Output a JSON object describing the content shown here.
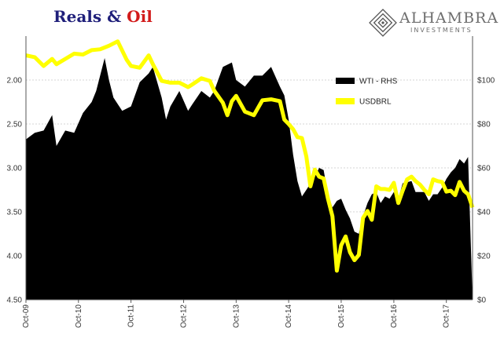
{
  "title": {
    "part1": "Reals",
    "part2": "&",
    "part3": "Oil"
  },
  "logo": {
    "name": "ALHAMBRA",
    "sub": "INVESTMENTS"
  },
  "colors": {
    "wti": "#000000",
    "usdbrl": "#ffff00",
    "title_blue": "#1f1f7a",
    "title_red": "#d21b1b"
  },
  "chart_data": {
    "type": "area",
    "x_ticks": [
      "Oct-09",
      "Oct-10",
      "Oct-11",
      "Oct-12",
      "Oct-13",
      "Oct-14",
      "Oct-15",
      "Oct-16",
      "Oct-17"
    ],
    "y_left": {
      "ticks": [
        "2.00",
        "2.50",
        "3.00",
        "3.50",
        "4.00",
        "4.50"
      ],
      "values": [
        2.0,
        2.5,
        3.0,
        3.5,
        4.0,
        4.5
      ],
      "range": [
        1.5,
        4.5
      ],
      "inverted": true
    },
    "y_right": {
      "ticks": [
        "$0",
        "$20",
        "$40",
        "$60",
        "$80",
        "$100"
      ],
      "values": [
        0,
        20,
        40,
        60,
        80,
        100
      ],
      "range": [
        0,
        120
      ]
    },
    "grid": true,
    "legend": {
      "placement": "top-right"
    },
    "series": [
      {
        "name": "WTI - RHS",
        "kind": "area",
        "axis": "right",
        "points": [
          [
            "2009-10",
            73
          ],
          [
            "2009-12",
            76
          ],
          [
            "2010-02",
            77
          ],
          [
            "2010-04",
            84
          ],
          [
            "2010-05",
            70
          ],
          [
            "2010-07",
            77
          ],
          [
            "2010-09",
            76
          ],
          [
            "2010-11",
            85
          ],
          [
            "2011-01",
            90
          ],
          [
            "2011-02",
            95
          ],
          [
            "2011-04",
            110
          ],
          [
            "2011-05",
            100
          ],
          [
            "2011-06",
            92
          ],
          [
            "2011-08",
            86
          ],
          [
            "2011-10",
            88
          ],
          [
            "2011-12",
            99
          ],
          [
            "2012-02",
            103
          ],
          [
            "2012-03",
            106
          ],
          [
            "2012-05",
            92
          ],
          [
            "2012-06",
            82
          ],
          [
            "2012-07",
            88
          ],
          [
            "2012-09",
            95
          ],
          [
            "2012-11",
            86
          ],
          [
            "2012-12",
            89
          ],
          [
            "2013-02",
            95
          ],
          [
            "2013-04",
            92
          ],
          [
            "2013-05",
            95
          ],
          [
            "2013-07",
            106
          ],
          [
            "2013-09",
            108
          ],
          [
            "2013-10",
            100
          ],
          [
            "2013-12",
            97
          ],
          [
            "2014-02",
            102
          ],
          [
            "2014-04",
            102
          ],
          [
            "2014-06",
            106
          ],
          [
            "2014-08",
            97
          ],
          [
            "2014-09",
            93
          ],
          [
            "2014-10",
            82
          ],
          [
            "2014-11",
            66
          ],
          [
            "2014-12",
            54
          ],
          [
            "2015-01",
            47
          ],
          [
            "2015-02",
            50
          ],
          [
            "2015-04",
            56
          ],
          [
            "2015-05",
            60
          ],
          [
            "2015-06",
            59
          ],
          [
            "2015-07",
            48
          ],
          [
            "2015-08",
            42
          ],
          [
            "2015-09",
            45
          ],
          [
            "2015-10",
            46
          ],
          [
            "2015-11",
            41
          ],
          [
            "2015-12",
            37
          ],
          [
            "2016-01",
            31
          ],
          [
            "2016-02",
            30
          ],
          [
            "2016-03",
            38
          ],
          [
            "2016-04",
            44
          ],
          [
            "2016-05",
            48
          ],
          [
            "2016-06",
            49
          ],
          [
            "2016-07",
            44
          ],
          [
            "2016-08",
            47
          ],
          [
            "2016-09",
            46
          ],
          [
            "2016-10",
            49
          ],
          [
            "2016-11",
            46
          ],
          [
            "2016-12",
            53
          ],
          [
            "2017-02",
            54
          ],
          [
            "2017-03",
            49
          ],
          [
            "2017-05",
            49
          ],
          [
            "2017-06",
            45
          ],
          [
            "2017-07",
            48
          ],
          [
            "2017-08",
            48
          ],
          [
            "2017-09",
            51
          ],
          [
            "2017-10",
            55
          ],
          [
            "2017-11",
            58
          ],
          [
            "2017-12",
            60
          ],
          [
            "2018-01",
            64
          ],
          [
            "2018-02",
            62
          ],
          [
            "2018-03",
            65
          ]
        ]
      },
      {
        "name": "USDBRL",
        "kind": "line",
        "axis": "left",
        "points": [
          [
            "2009-10",
            1.72
          ],
          [
            "2009-12",
            1.74
          ],
          [
            "2010-02",
            1.84
          ],
          [
            "2010-04",
            1.76
          ],
          [
            "2010-05",
            1.82
          ],
          [
            "2010-07",
            1.76
          ],
          [
            "2010-09",
            1.7
          ],
          [
            "2010-11",
            1.71
          ],
          [
            "2011-01",
            1.66
          ],
          [
            "2011-03",
            1.65
          ],
          [
            "2011-05",
            1.61
          ],
          [
            "2011-07",
            1.56
          ],
          [
            "2011-09",
            1.77
          ],
          [
            "2011-10",
            1.84
          ],
          [
            "2011-12",
            1.86
          ],
          [
            "2012-02",
            1.72
          ],
          [
            "2012-03",
            1.82
          ],
          [
            "2012-05",
            2.01
          ],
          [
            "2012-07",
            2.03
          ],
          [
            "2012-09",
            2.03
          ],
          [
            "2012-11",
            2.08
          ],
          [
            "2012-12",
            2.05
          ],
          [
            "2013-02",
            1.98
          ],
          [
            "2013-04",
            2.01
          ],
          [
            "2013-05",
            2.12
          ],
          [
            "2013-07",
            2.26
          ],
          [
            "2013-08",
            2.4
          ],
          [
            "2013-09",
            2.24
          ],
          [
            "2013-10",
            2.18
          ],
          [
            "2013-12",
            2.36
          ],
          [
            "2014-02",
            2.4
          ],
          [
            "2014-04",
            2.23
          ],
          [
            "2014-06",
            2.22
          ],
          [
            "2014-08",
            2.24
          ],
          [
            "2014-09",
            2.45
          ],
          [
            "2014-10",
            2.5
          ],
          [
            "2014-11",
            2.56
          ],
          [
            "2014-12",
            2.65
          ],
          [
            "2015-01",
            2.66
          ],
          [
            "2015-02",
            2.87
          ],
          [
            "2015-03",
            3.21
          ],
          [
            "2015-04",
            3.02
          ],
          [
            "2015-05",
            3.1
          ],
          [
            "2015-06",
            3.12
          ],
          [
            "2015-07",
            3.35
          ],
          [
            "2015-08",
            3.55
          ],
          [
            "2015-09",
            4.17
          ],
          [
            "2015-10",
            3.88
          ],
          [
            "2015-11",
            3.78
          ],
          [
            "2015-12",
            3.96
          ],
          [
            "2016-01",
            4.05
          ],
          [
            "2016-02",
            3.99
          ],
          [
            "2016-03",
            3.57
          ],
          [
            "2016-04",
            3.49
          ],
          [
            "2016-05",
            3.59
          ],
          [
            "2016-06",
            3.21
          ],
          [
            "2016-07",
            3.24
          ],
          [
            "2016-08",
            3.24
          ],
          [
            "2016-09",
            3.25
          ],
          [
            "2016-10",
            3.17
          ],
          [
            "2016-11",
            3.4
          ],
          [
            "2016-12",
            3.26
          ],
          [
            "2017-01",
            3.13
          ],
          [
            "2017-02",
            3.1
          ],
          [
            "2017-03",
            3.15
          ],
          [
            "2017-04",
            3.19
          ],
          [
            "2017-05",
            3.25
          ],
          [
            "2017-06",
            3.3
          ],
          [
            "2017-07",
            3.13
          ],
          [
            "2017-08",
            3.15
          ],
          [
            "2017-09",
            3.16
          ],
          [
            "2017-10",
            3.27
          ],
          [
            "2017-11",
            3.26
          ],
          [
            "2017-12",
            3.31
          ],
          [
            "2018-01",
            3.16
          ],
          [
            "2018-02",
            3.26
          ],
          [
            "2018-03",
            3.3
          ],
          [
            "2018-04",
            3.45
          ]
        ]
      }
    ]
  }
}
